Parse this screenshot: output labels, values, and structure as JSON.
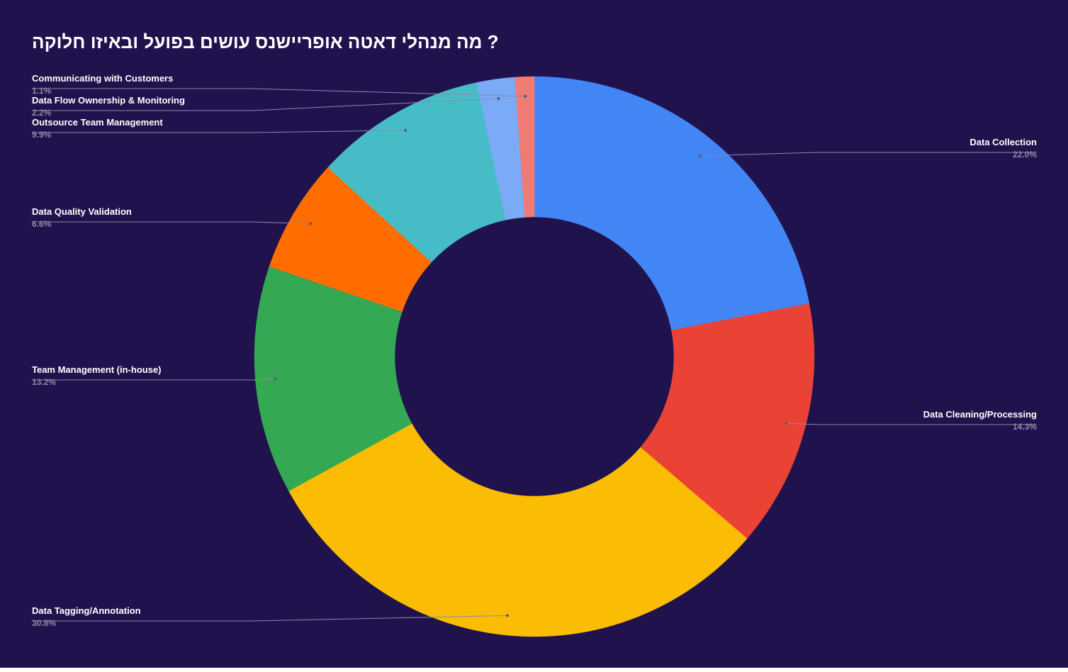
{
  "chart_data": {
    "type": "pie",
    "donut": true,
    "title": "? מה מנהלי דאטה אופריישנס עושים בפועל ובאיזו חלוקה",
    "legend": "none",
    "slices": [
      {
        "label": "Data Collection",
        "value": 22.0,
        "value_label": "22.0%",
        "color": "#4285f4",
        "label_side": "right"
      },
      {
        "label": "Data Cleaning/Processing",
        "value": 14.3,
        "value_label": "14.3%",
        "color": "#ea4335",
        "label_side": "right"
      },
      {
        "label": "Data Tagging/Annotation",
        "value": 30.8,
        "value_label": "30.8%",
        "color": "#fbbc04",
        "label_side": "left"
      },
      {
        "label": "Team Management (in-house)",
        "value": 13.2,
        "value_label": "13.2%",
        "color": "#34a853",
        "label_side": "left"
      },
      {
        "label": "Data Quality Validation",
        "value": 6.6,
        "value_label": "6.6%",
        "color": "#ff6d01",
        "label_side": "left"
      },
      {
        "label": "Outsource Team Management",
        "value": 9.9,
        "value_label": "9.9%",
        "color": "#46bdc6",
        "label_side": "left"
      },
      {
        "label": "Data Flow Ownership & Monitoring",
        "value": 2.2,
        "value_label": "2.2%",
        "color": "#7baaf7",
        "label_side": "left"
      },
      {
        "label": "Communicating with Customers",
        "value": 1.1,
        "value_label": "1.1%",
        "color": "#f07b72",
        "label_side": "left"
      }
    ]
  },
  "colors": {
    "background": "#20134d",
    "title": "#ffffff",
    "leader_line": "#8a8aa8",
    "value_text": "#8a8aa8"
  }
}
